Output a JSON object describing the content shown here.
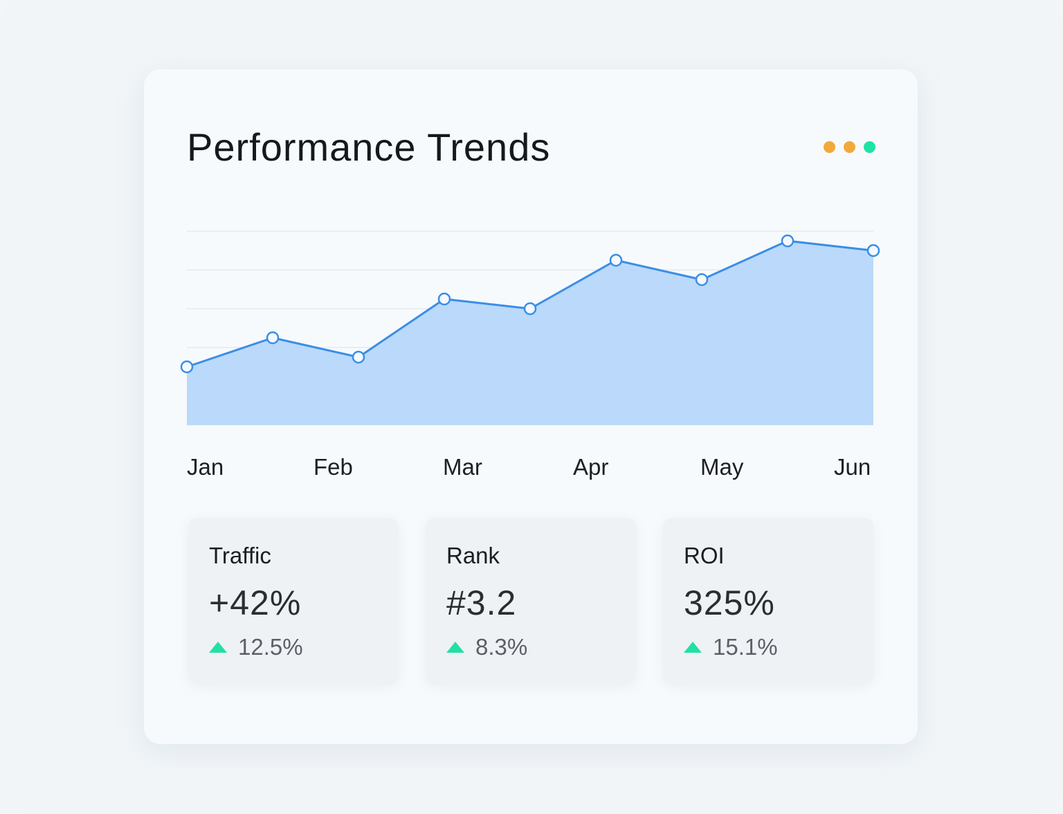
{
  "header": {
    "title": "Performance Trends",
    "dots": [
      {
        "name": "orange",
        "color": "#f2a93b"
      },
      {
        "name": "orange",
        "color": "#f2a93b"
      },
      {
        "name": "green",
        "color": "#1ee3a6"
      }
    ]
  },
  "chart_data": {
    "type": "area",
    "title": "Performance Trends",
    "x_tick_labels": [
      "Jan",
      "Feb",
      "Mar",
      "Apr",
      "May",
      "Jun"
    ],
    "values": [
      30,
      45,
      35,
      65,
      60,
      85,
      75,
      95,
      90
    ],
    "ylim": [
      0,
      100
    ],
    "grid": true,
    "line_color": "#3a8ee6",
    "fill_color": "#b7d7fa"
  },
  "metrics": [
    {
      "label": "Traffic",
      "value": "+42%",
      "delta": "12.5%"
    },
    {
      "label": "Rank",
      "value": "#3.2",
      "delta": "8.3%"
    },
    {
      "label": "ROI",
      "value": "325%",
      "delta": "15.1%"
    }
  ]
}
